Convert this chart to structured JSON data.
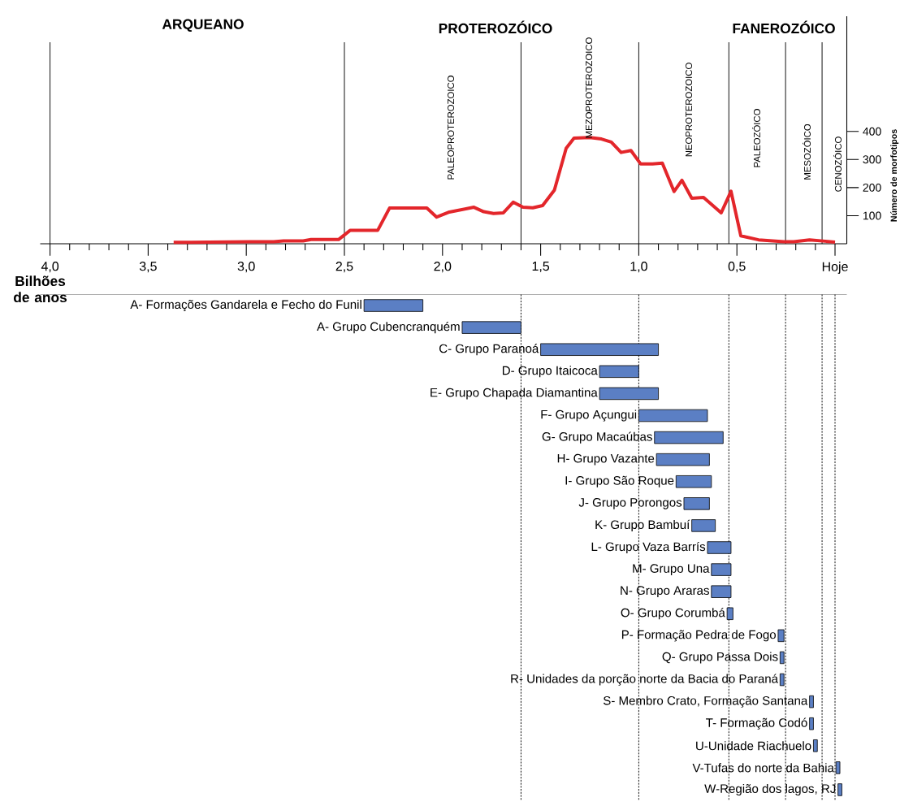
{
  "chart_data": [
    {
      "type": "line",
      "xlabel": "Bilhões de anos",
      "ylabel": "Número de morfotipos",
      "xlim": [
        4.05,
        -0.06
      ],
      "xticks": [
        {
          "value": 4.0,
          "label": "4,0"
        },
        {
          "value": 3.9,
          "label": null
        },
        {
          "value": 3.8,
          "label": null
        },
        {
          "value": 3.7,
          "label": null
        },
        {
          "value": 3.6,
          "label": null
        },
        {
          "value": 3.5,
          "label": "3,5"
        },
        {
          "value": 3.4,
          "label": null
        },
        {
          "value": 3.3,
          "label": null
        },
        {
          "value": 3.2,
          "label": null
        },
        {
          "value": 3.1,
          "label": null
        },
        {
          "value": 3.0,
          "label": "3,0"
        },
        {
          "value": 2.9,
          "label": null
        },
        {
          "value": 2.8,
          "label": null
        },
        {
          "value": 2.7,
          "label": null
        },
        {
          "value": 2.6,
          "label": null
        },
        {
          "value": 2.5,
          "label": "2,5"
        },
        {
          "value": 2.4,
          "label": null
        },
        {
          "value": 2.3,
          "label": null
        },
        {
          "value": 2.2,
          "label": null
        },
        {
          "value": 2.1,
          "label": null
        },
        {
          "value": 2.0,
          "label": "2,0"
        },
        {
          "value": 1.9,
          "label": null
        },
        {
          "value": 1.8,
          "label": null
        },
        {
          "value": 1.7,
          "label": null
        },
        {
          "value": 1.6,
          "label": null
        },
        {
          "value": 1.5,
          "label": "1,5"
        },
        {
          "value": 1.4,
          "label": null
        },
        {
          "value": 1.3,
          "label": null
        },
        {
          "value": 1.2,
          "label": null
        },
        {
          "value": 1.1,
          "label": null
        },
        {
          "value": 1.0,
          "label": "1,0"
        },
        {
          "value": 0.9,
          "label": null
        },
        {
          "value": 0.8,
          "label": null
        },
        {
          "value": 0.7,
          "label": null
        },
        {
          "value": 0.6,
          "label": null
        },
        {
          "value": 0.5,
          "label": "0,5"
        },
        {
          "value": 0.4,
          "label": null
        },
        {
          "value": 0.3,
          "label": null
        },
        {
          "value": 0.2,
          "label": null
        },
        {
          "value": 0.1,
          "label": null
        },
        {
          "value": 0,
          "label": "Hoje"
        }
      ],
      "ylim": [
        0,
        810
      ],
      "yticks": [
        100,
        200,
        300,
        400
      ],
      "series": [
        {
          "color": "#e3262b",
          "x": [
            3.37,
            3.28,
            3.19,
            2.98,
            2.86,
            2.81,
            2.71,
            2.67,
            2.53,
            2.47,
            2.33,
            2.27,
            2.08,
            2.03,
            1.97,
            1.84,
            1.79,
            1.74,
            1.69,
            1.64,
            1.59,
            1.54,
            1.49,
            1.43,
            1.37,
            1.33,
            1.25,
            1.19,
            1.14,
            1.09,
            1.04,
            0.99,
            0.93,
            0.88,
            0.82,
            0.78,
            0.73,
            0.67,
            0.58,
            0.53,
            0.48,
            0.39,
            0.26,
            0.21,
            0.13,
            0.05,
            0.0
          ],
          "values": [
            5,
            5,
            6,
            7,
            7,
            10,
            10,
            15,
            15,
            48,
            48,
            127,
            127,
            95,
            112,
            130,
            114,
            108,
            110,
            148,
            130,
            128,
            136,
            191,
            340,
            376,
            378,
            373,
            362,
            325,
            332,
            284,
            284,
            287,
            186,
            226,
            162,
            165,
            110,
            187,
            28,
            14,
            7,
            7,
            14,
            9,
            6
          ]
        }
      ],
      "ref_lines": [
        {
          "axis": "x",
          "value": 4.0
        },
        {
          "axis": "x",
          "value": 2.5
        },
        {
          "axis": "x",
          "value": 1.6
        },
        {
          "axis": "x",
          "value": 1.0
        },
        {
          "axis": "x",
          "value": 0.541
        },
        {
          "axis": "x",
          "value": 0.252
        },
        {
          "axis": "x",
          "value": 0.066
        }
      ],
      "annotations": [
        "ARQUEANO",
        "PROTEROZÓICO",
        "FANEROZÓICO",
        "PALEOPROTEROZOICO",
        "MEZOPROTEROZOICO",
        "NEOPROTEROZOICO",
        "PALEOZÓICO",
        "MESOZÓICO",
        "CENOZÓICO"
      ]
    },
    {
      "type": "bar",
      "orientation": "horizontal",
      "color": "#5b7fc4",
      "xlim": [
        4.05,
        -0.06
      ],
      "tick_labels": false,
      "categories": [
        "A- Formações Gandarela e Fecho do Funil",
        "A- Grupo Cubencranquém",
        "C- Grupo Paranoá",
        "D- Grupo Itaicoca",
        "E- Grupo Chapada Diamantina",
        "F- Grupo Açungui",
        "G- Grupo Macaúbas",
        "H- Grupo Vazante",
        "I- Grupo São Roque",
        "J- Grupo Porongos",
        "K- Grupo Bambuí",
        "L- Grupo Vaza Barrís",
        "M- Grupo Una",
        "N- Grupo Araras",
        "O- Grupo Corumbá",
        "P- Formação Pedra de Fogo",
        "Q- Grupo Passa Dois",
        "R- Unidades da porção norte da Bacia do Paraná",
        "S- Membro Crato, Formação Santana",
        "T- Formação Codó",
        "U-Unidade Riachuelo",
        "V-Tufas do norte da Bahia",
        "W-Região dos lagos, RJ"
      ],
      "base": [
        2.1,
        1.6,
        0.9,
        1.0,
        0.9,
        0.65,
        0.57,
        0.64,
        0.63,
        0.64,
        0.61,
        0.53,
        0.53,
        0.53,
        0.52,
        0.26,
        0.26,
        0.26,
        0.11,
        0.11,
        0.09,
        -0.025,
        -0.035
      ],
      "values": [
        0.3,
        0.3,
        0.6,
        0.2,
        0.3,
        0.35,
        0.35,
        0.27,
        0.18,
        0.13,
        0.12,
        0.12,
        0.1,
        0.1,
        0.03,
        0.03,
        0.02,
        0.02,
        0.02,
        0.02,
        0.02,
        0.02,
        0.02
      ],
      "ref_lines": [
        {
          "axis": "x",
          "value": 1.6,
          "line_style": "dotted"
        },
        {
          "axis": "x",
          "value": 1.0,
          "line_style": "dotted"
        },
        {
          "axis": "x",
          "value": 0.541,
          "line_style": "dotted"
        },
        {
          "axis": "x",
          "value": 0.252,
          "line_style": "dotted"
        },
        {
          "axis": "x",
          "value": 0.066,
          "line_style": "dotted"
        },
        {
          "axis": "x",
          "value": 0,
          "line_style": "dotted"
        }
      ]
    }
  ]
}
